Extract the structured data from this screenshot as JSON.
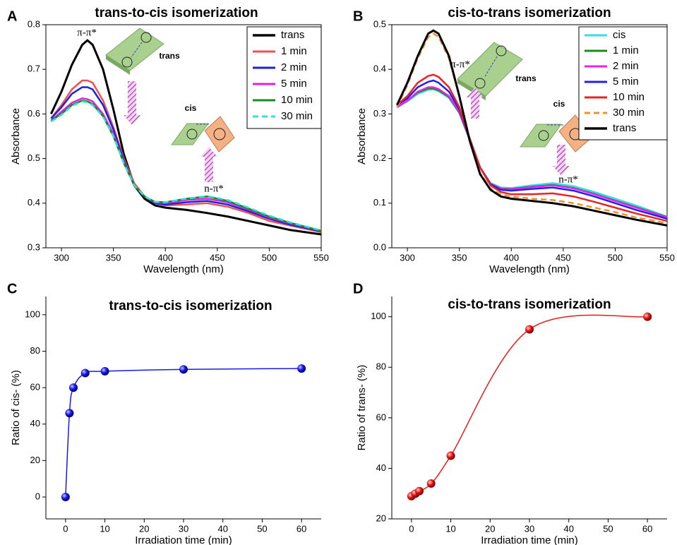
{
  "chart_data": [
    {
      "type": "line",
      "panel_label": "A",
      "title": "trans-to-cis isomerization",
      "xlabel": "Wavelength (nm)",
      "ylabel": "Absorbance",
      "x": [
        290,
        300,
        310,
        320,
        325,
        330,
        340,
        350,
        360,
        370,
        380,
        390,
        400,
        420,
        440,
        460,
        480,
        500,
        520,
        550
      ],
      "series": [
        {
          "name": "trans",
          "color": "#000000",
          "values": [
            0.6,
            0.65,
            0.71,
            0.755,
            0.765,
            0.755,
            0.7,
            0.61,
            0.51,
            0.44,
            0.41,
            0.395,
            0.39,
            0.385,
            0.378,
            0.37,
            0.36,
            0.35,
            0.34,
            0.33
          ]
        },
        {
          "name": "1 min",
          "color": "#f05050",
          "values": [
            0.59,
            0.62,
            0.655,
            0.675,
            0.675,
            0.67,
            0.63,
            0.57,
            0.5,
            0.445,
            0.415,
            0.4,
            0.395,
            0.397,
            0.4,
            0.392,
            0.378,
            0.36,
            0.35,
            0.335
          ]
        },
        {
          "name": "2 min",
          "color": "#1f1fe0",
          "values": [
            0.59,
            0.615,
            0.645,
            0.66,
            0.66,
            0.655,
            0.62,
            0.565,
            0.495,
            0.44,
            0.415,
            0.4,
            0.397,
            0.402,
            0.405,
            0.397,
            0.382,
            0.365,
            0.352,
            0.337
          ]
        },
        {
          "name": "5 min",
          "color": "#e020e0",
          "values": [
            0.585,
            0.605,
            0.625,
            0.635,
            0.633,
            0.628,
            0.6,
            0.555,
            0.49,
            0.44,
            0.415,
            0.402,
            0.4,
            0.407,
            0.41,
            0.402,
            0.386,
            0.368,
            0.355,
            0.338
          ]
        },
        {
          "name": "10 min",
          "color": "#1a8a1a",
          "values": [
            0.585,
            0.6,
            0.62,
            0.63,
            0.628,
            0.622,
            0.595,
            0.55,
            0.49,
            0.44,
            0.415,
            0.403,
            0.402,
            0.41,
            0.415,
            0.405,
            0.388,
            0.37,
            0.356,
            0.338
          ]
        },
        {
          "name": "30 min",
          "color": "#2ee0e0",
          "dashed": true,
          "values": [
            0.583,
            0.598,
            0.618,
            0.628,
            0.626,
            0.62,
            0.594,
            0.55,
            0.49,
            0.44,
            0.415,
            0.403,
            0.402,
            0.41,
            0.416,
            0.407,
            0.39,
            0.372,
            0.357,
            0.339
          ]
        }
      ],
      "xlim": [
        285,
        550
      ],
      "xticks": [
        300,
        350,
        400,
        450,
        500,
        550
      ],
      "ylim": [
        0.3,
        0.8
      ],
      "yticks": [
        0.3,
        0.4,
        0.5,
        0.6,
        0.7,
        0.8
      ],
      "legend": "upper right",
      "annotations": [
        "π-π*",
        "n-π*",
        "trans",
        "cis"
      ]
    },
    {
      "type": "line",
      "panel_label": "B",
      "title": "cis-to-trans isomerization",
      "xlabel": "Wavelength (nm)",
      "ylabel": "Absorbance",
      "x": [
        290,
        300,
        310,
        320,
        325,
        330,
        340,
        350,
        360,
        370,
        380,
        390,
        400,
        420,
        440,
        460,
        480,
        500,
        520,
        550
      ],
      "series": [
        {
          "name": "cis",
          "color": "#33e0e8",
          "values": [
            0.315,
            0.328,
            0.345,
            0.354,
            0.355,
            0.351,
            0.336,
            0.302,
            0.242,
            0.18,
            0.145,
            0.135,
            0.134,
            0.14,
            0.145,
            0.138,
            0.125,
            0.11,
            0.095,
            0.07
          ]
        },
        {
          "name": "1 min",
          "color": "#1a8a1a",
          "values": [
            0.315,
            0.33,
            0.348,
            0.357,
            0.357,
            0.353,
            0.338,
            0.303,
            0.242,
            0.18,
            0.144,
            0.133,
            0.132,
            0.137,
            0.141,
            0.134,
            0.121,
            0.106,
            0.091,
            0.069
          ]
        },
        {
          "name": "2 min",
          "color": "#ee22ee",
          "values": [
            0.315,
            0.33,
            0.35,
            0.36,
            0.36,
            0.356,
            0.34,
            0.305,
            0.243,
            0.18,
            0.143,
            0.132,
            0.131,
            0.136,
            0.14,
            0.133,
            0.12,
            0.105,
            0.09,
            0.068
          ]
        },
        {
          "name": "5 min",
          "color": "#2020ee",
          "values": [
            0.32,
            0.335,
            0.36,
            0.372,
            0.375,
            0.37,
            0.35,
            0.31,
            0.245,
            0.18,
            0.142,
            0.13,
            0.128,
            0.132,
            0.135,
            0.128,
            0.115,
            0.1,
            0.085,
            0.065
          ]
        },
        {
          "name": "10 min",
          "color": "#ee2020",
          "values": [
            0.32,
            0.34,
            0.37,
            0.385,
            0.388,
            0.383,
            0.36,
            0.315,
            0.245,
            0.18,
            0.14,
            0.125,
            0.12,
            0.12,
            0.122,
            0.115,
            0.103,
            0.09,
            0.077,
            0.06
          ]
        },
        {
          "name": "30 min",
          "color": "#f0902a",
          "dashed": true,
          "values": [
            0.315,
            0.365,
            0.425,
            0.472,
            0.48,
            0.473,
            0.425,
            0.34,
            0.24,
            0.167,
            0.133,
            0.12,
            0.115,
            0.11,
            0.107,
            0.1,
            0.09,
            0.08,
            0.068,
            0.055
          ]
        },
        {
          "name": "trans",
          "color": "#000000",
          "values": [
            0.32,
            0.37,
            0.43,
            0.48,
            0.487,
            0.48,
            0.43,
            0.34,
            0.24,
            0.165,
            0.13,
            0.115,
            0.11,
            0.105,
            0.1,
            0.093,
            0.083,
            0.073,
            0.063,
            0.05
          ]
        }
      ],
      "xlim": [
        285,
        550
      ],
      "xticks": [
        300,
        350,
        400,
        450,
        500,
        550
      ],
      "ylim": [
        0,
        0.5
      ],
      "yticks": [
        {
          "value": 0,
          "label": "0.0"
        },
        0.1,
        0.2,
        0.3,
        0.4,
        0.5
      ],
      "legend": "upper right",
      "annotations": [
        "π-π*",
        "n-π*",
        "trans",
        "cis"
      ]
    },
    {
      "type": "scatter",
      "panel_label": "C",
      "title": "trans-to-cis isomerization",
      "xlabel": "Irradiation time (min)",
      "ylabel": "Ratio of cis- (%)",
      "x": [
        0,
        1,
        2,
        5,
        10,
        30,
        60
      ],
      "values": [
        0,
        46,
        60,
        68,
        69,
        70,
        70.5
      ],
      "color": "#1a1ae8",
      "xlim": [
        -5,
        65
      ],
      "xticks": [
        0,
        10,
        20,
        30,
        40,
        50,
        60
      ],
      "ylim": [
        -12,
        110
      ],
      "yticks": [
        0,
        20,
        40,
        60,
        80,
        100
      ]
    },
    {
      "type": "scatter",
      "panel_label": "D",
      "title": "cis-to-trans isomerization",
      "xlabel": "Irradiation time (min)",
      "ylabel": "Ratio of trans- (%)",
      "x": [
        0,
        1,
        2,
        5,
        10,
        30,
        60
      ],
      "values": [
        29,
        30,
        31,
        34,
        45,
        95,
        100
      ],
      "color": "#e81a1a",
      "xlim": [
        -5,
        65
      ],
      "xticks": [
        0,
        10,
        20,
        30,
        40,
        50,
        60
      ],
      "ylim": [
        20,
        108
      ],
      "yticks": [
        20,
        40,
        60,
        80,
        100
      ]
    }
  ]
}
